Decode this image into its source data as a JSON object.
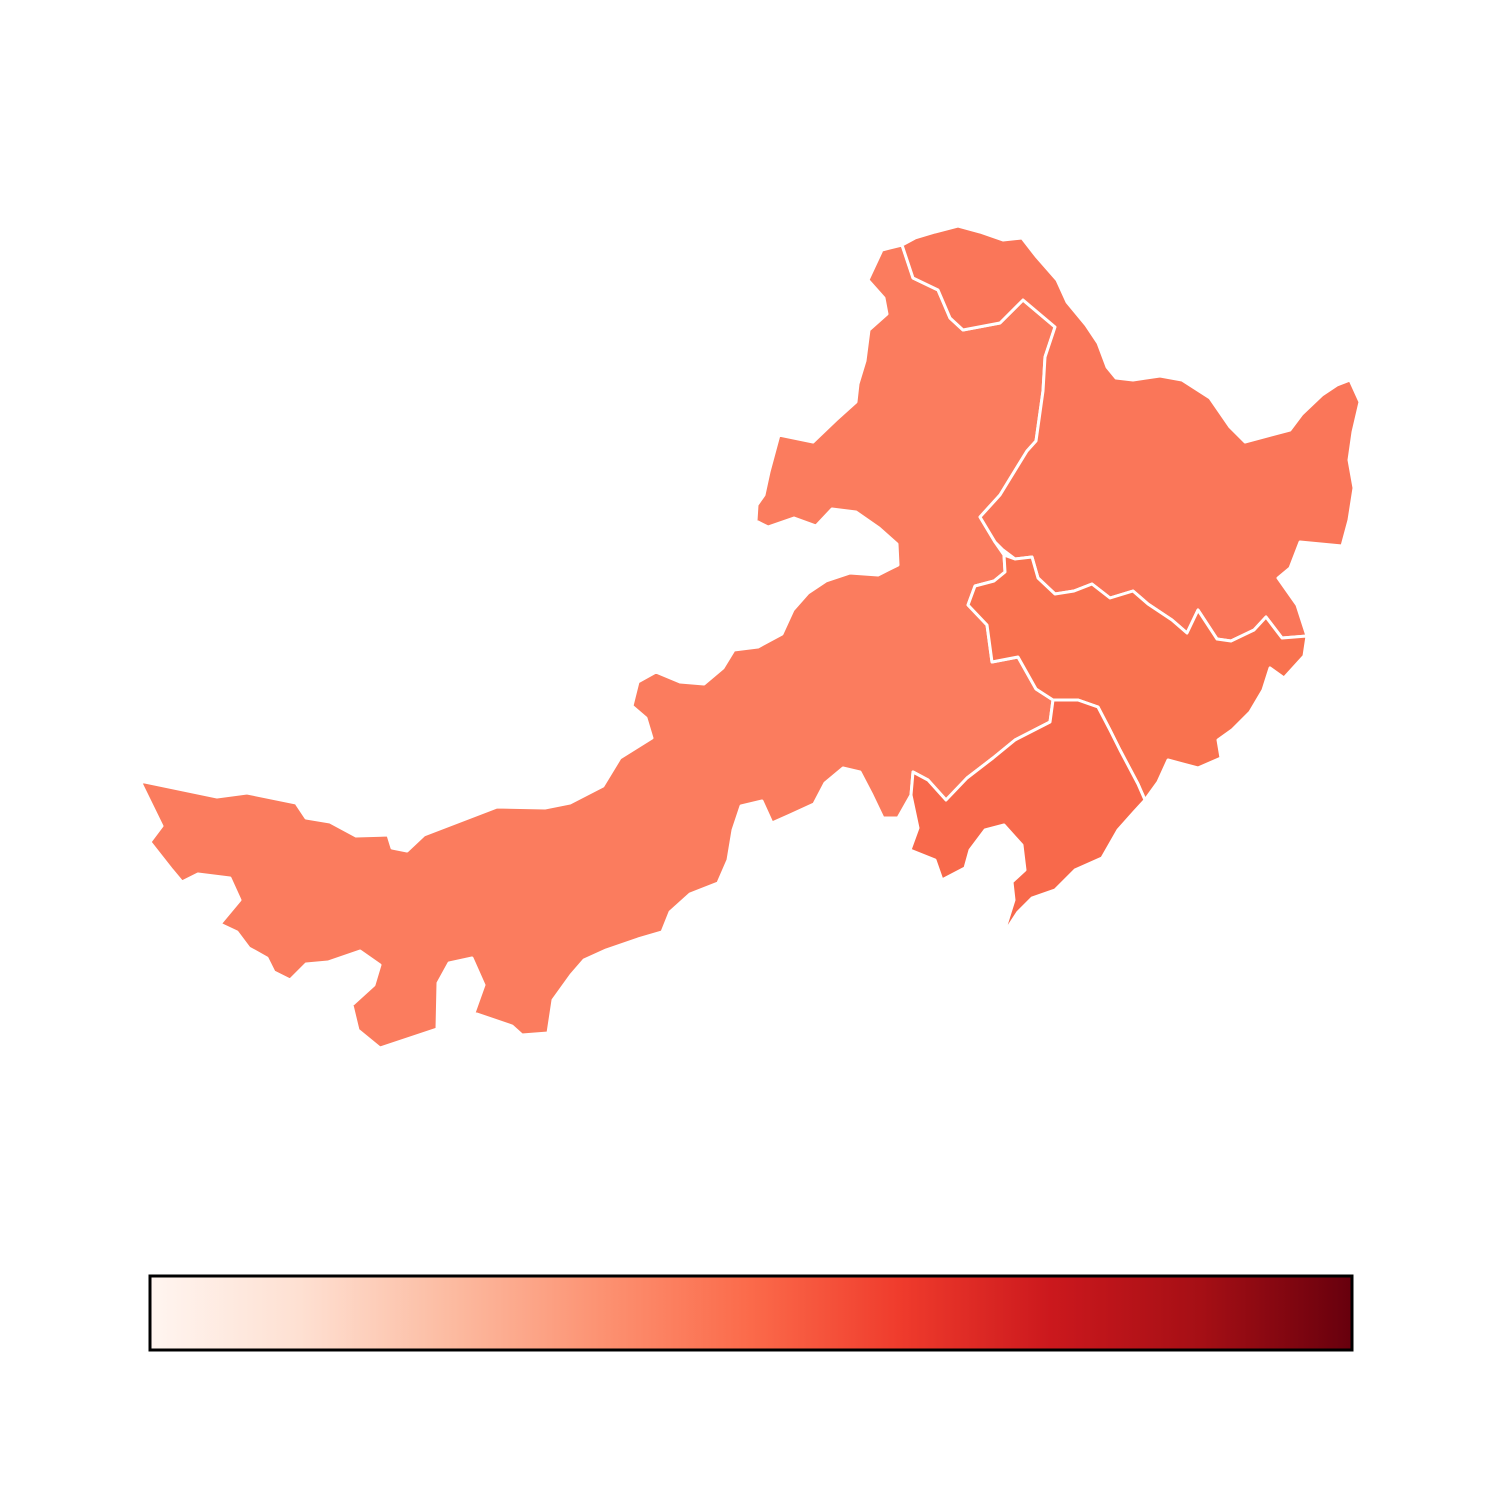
{
  "map": {
    "colormap": "Reds",
    "regions": [
      {
        "id": "west",
        "fill": "#fb7c5e"
      },
      {
        "id": "north",
        "fill": "#fa7659"
      },
      {
        "id": "northeast",
        "fill": "#f97153"
      },
      {
        "id": "central-east",
        "fill": "#f9724f"
      },
      {
        "id": "southeast",
        "fill": "#f8694b"
      }
    ]
  },
  "colorbar": {
    "orientation": "horizontal",
    "stops": [
      "#fff5f0",
      "#fee0d2",
      "#fcbba1",
      "#fc9272",
      "#fb6a4a",
      "#ef3b2c",
      "#cb181d",
      "#a50f15",
      "#67000d"
    ]
  }
}
